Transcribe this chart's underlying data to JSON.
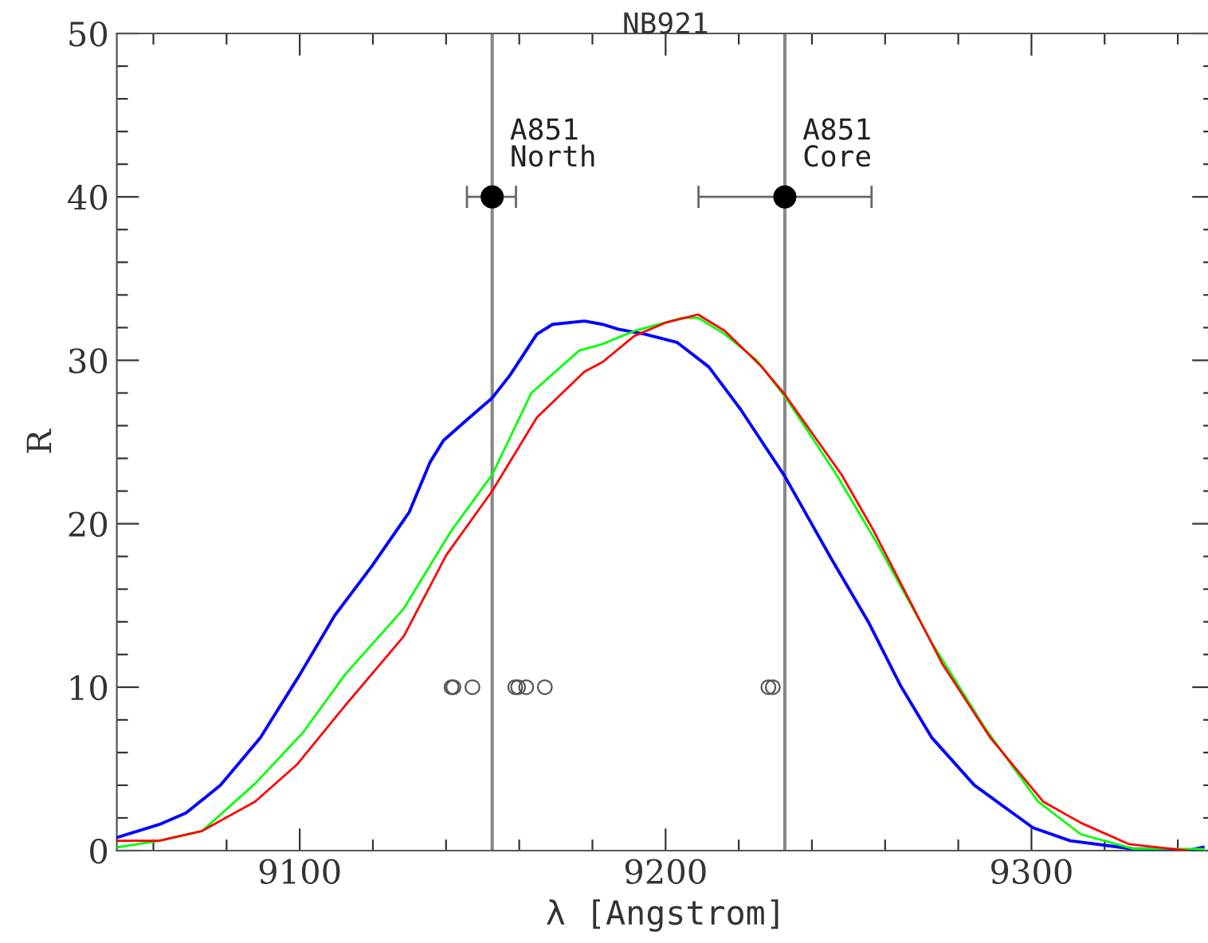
{
  "chart_data": {
    "type": "line",
    "title": "NB921",
    "xlabel": "λ [Angstrom]",
    "ylabel": "R",
    "xlim": [
      9050,
      9350
    ],
    "ylim": [
      0,
      50
    ],
    "xticks": [
      {
        "value": 9060,
        "label": null
      },
      {
        "value": 9080,
        "label": null
      },
      9100,
      {
        "value": 9120,
        "label": null
      },
      {
        "value": 9140,
        "label": null
      },
      {
        "value": 9160,
        "label": null
      },
      {
        "value": 9180,
        "label": null
      },
      9200,
      {
        "value": 9220,
        "label": null
      },
      {
        "value": 9240,
        "label": null
      },
      {
        "value": 9260,
        "label": null
      },
      {
        "value": 9280,
        "label": null
      },
      9300,
      {
        "value": 9320,
        "label": null
      },
      {
        "value": 9340,
        "label": null
      }
    ],
    "yticks": [
      0,
      {
        "value": 2,
        "label": null
      },
      {
        "value": 4,
        "label": null
      },
      {
        "value": 6,
        "label": null
      },
      {
        "value": 8,
        "label": null
      },
      10,
      {
        "value": 12,
        "label": null
      },
      {
        "value": 14,
        "label": null
      },
      {
        "value": 16,
        "label": null
      },
      {
        "value": 18,
        "label": null
      },
      20,
      {
        "value": 22,
        "label": null
      },
      {
        "value": 24,
        "label": null
      },
      {
        "value": 26,
        "label": null
      },
      {
        "value": 28,
        "label": null
      },
      30,
      {
        "value": 32,
        "label": null
      },
      {
        "value": 34,
        "label": null
      },
      {
        "value": 36,
        "label": null
      },
      {
        "value": 38,
        "label": null
      },
      40,
      {
        "value": 42,
        "label": null
      },
      {
        "value": 44,
        "label": null
      },
      {
        "value": 46,
        "label": null
      },
      {
        "value": 48,
        "label": null
      },
      50
    ],
    "grid": false,
    "line_style": "solid",
    "series": [
      {
        "color": "#0000ff",
        "x": [
          9050,
          9061.6,
          9068.9,
          9078.3,
          9089.2,
          9100.1,
          9109.6,
          9119.7,
          9129.9,
          9135.7,
          9139.3,
          9145.9,
          9152.6,
          9157.5,
          9164.8,
          9169.1,
          9177.8,
          9182.8,
          9187.1,
          9194.4,
          9203.1,
          9211.8,
          9220.5,
          9232.6,
          9245.2,
          9255.4,
          9264.2,
          9272.8,
          9284.4,
          9300.4,
          9310.6,
          9328,
          9342.7,
          9346.9
        ],
        "values": [
          0.8,
          1.6,
          2.3,
          4.0,
          6.9,
          10.8,
          14.4,
          17.4,
          20.7,
          23.8,
          25.1,
          26.4,
          27.7,
          29.1,
          31.6,
          32.2,
          32.4,
          32.2,
          31.9,
          31.6,
          31.1,
          29.6,
          27.0,
          22.9,
          17.9,
          14.0,
          10.1,
          6.9,
          4.0,
          1.4,
          0.6,
          0.1,
          0,
          0.2
        ]
      },
      {
        "color": "#00ff00",
        "x": [
          9050,
          9061.6,
          9073.3,
          9087.8,
          9100.8,
          9112.5,
          9128.4,
          9141.5,
          9152.6,
          9163.3,
          9176.4,
          9182.8,
          9191.5,
          9204.6,
          9208.9,
          9216.2,
          9224.9,
          9232.6,
          9246.7,
          9258.3,
          9272.8,
          9287.3,
          9301.8,
          9313.5,
          9328,
          9346.9
        ],
        "values": [
          0.2,
          0.6,
          1.2,
          4.1,
          7.2,
          10.8,
          14.8,
          19.6,
          23.0,
          28.0,
          30.6,
          31.0,
          31.8,
          32.6,
          32.6,
          31.6,
          30.0,
          27.8,
          23.0,
          18.6,
          12.7,
          7.5,
          3.0,
          1.0,
          0.1,
          0.1
        ]
      },
      {
        "color": "#ff0000",
        "x": [
          9050,
          9061.6,
          9073.3,
          9087.8,
          9099.4,
          9112.5,
          9128.4,
          9140.1,
          9152.6,
          9164.8,
          9177.8,
          9182.8,
          9191.5,
          9200,
          9208.9,
          9216.2,
          9226.3,
          9232.6,
          9248.1,
          9256.8,
          9275.7,
          9288.8,
          9303.2,
          9313.5,
          9326.6,
          9342.7
        ],
        "values": [
          0.6,
          0.6,
          1.2,
          3.0,
          5.3,
          8.9,
          13.1,
          18.1,
          22.0,
          26.5,
          29.3,
          29.9,
          31.5,
          32.3,
          32.8,
          31.8,
          29.6,
          27.9,
          23.0,
          19.6,
          11.4,
          6.9,
          3.0,
          1.7,
          0.4,
          0
        ]
      },
      {
        "type": "scatter",
        "color": "#000000",
        "marker": "circle",
        "x": [
          9152.6,
          9232.6
        ],
        "values": [
          40,
          40
        ],
        "xerrors": [
          [
            9145.7,
            9159.1
          ],
          [
            9209,
            9256.3
          ]
        ]
      },
      {
        "type": "scatter",
        "color": "#555555",
        "marker": "circle",
        "x": [
          9141.5,
          9142,
          9147.2,
          9158.9,
          9159.7,
          9161.9,
          9167,
          9228.1,
          9229.3
        ],
        "values": [
          10,
          10,
          10,
          10,
          10,
          10,
          10,
          10,
          10
        ]
      }
    ],
    "ref_lines": [
      {
        "axis": "x",
        "value": 9152.6,
        "color": "#888888",
        "label": "A851\nNorth"
      },
      {
        "axis": "x",
        "value": 9232.6,
        "color": "#888888",
        "label": "A851\nCore"
      }
    ]
  }
}
